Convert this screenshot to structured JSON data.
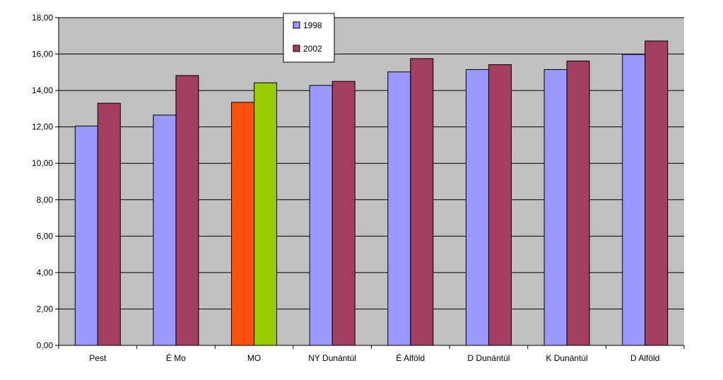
{
  "chart_data": {
    "type": "bar",
    "categories": [
      "Pest",
      "É Mo",
      "MO",
      "NY Dunántúl",
      "É Alföld",
      "D Dunántúl",
      "K Dunántúl",
      "D Alföld"
    ],
    "series": [
      {
        "name": "1998",
        "values": [
          12.05,
          12.65,
          13.35,
          14.28,
          15.02,
          15.15,
          15.15,
          15.98
        ],
        "color": "#9999ff"
      },
      {
        "name": "2002",
        "values": [
          13.3,
          14.82,
          14.42,
          14.5,
          15.75,
          15.42,
          15.62,
          16.72
        ],
        "color": "#a23e5f"
      }
    ],
    "highlight": {
      "category": "MO",
      "colors": [
        "#ff5010",
        "#99cc00"
      ]
    },
    "y_ticks": [
      "0,00",
      "2,00",
      "4,00",
      "6,00",
      "8,00",
      "10,00",
      "12,00",
      "14,00",
      "16,00",
      "18,00"
    ],
    "ylim": [
      0,
      18
    ],
    "y_step": 2,
    "title": "",
    "xlabel": "",
    "ylabel": "",
    "grid": true,
    "legend_position": "top-center",
    "plot_background": "#c0c0c0"
  }
}
